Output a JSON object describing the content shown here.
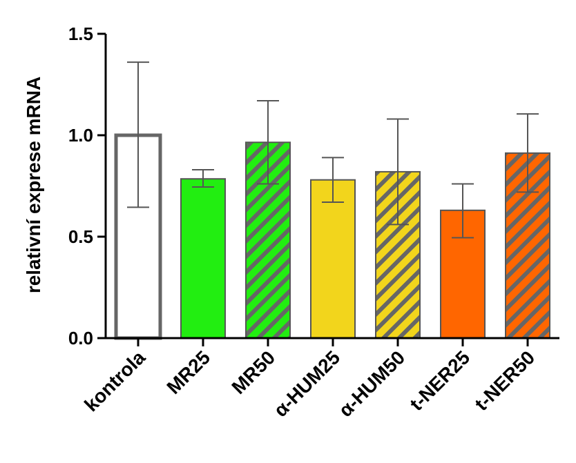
{
  "chart_data": {
    "type": "bar",
    "title": "",
    "xlabel": "",
    "ylabel": "relativní exprese mRNA",
    "ylim": [
      0,
      1.5
    ],
    "yticks": [
      "0.0",
      "0.5",
      "1.0",
      "1.5"
    ],
    "grid": false,
    "categories": [
      "kontrola",
      "MR25",
      "MR50",
      "α-HUM25",
      "α-HUM50",
      "t-NER25",
      "t-NER50"
    ],
    "values": [
      1.0,
      0.785,
      0.965,
      0.78,
      0.82,
      0.63,
      0.912
    ],
    "error_low": [
      0.645,
      0.745,
      0.76,
      0.67,
      0.56,
      0.495,
      0.72
    ],
    "error_high": [
      1.36,
      0.83,
      1.17,
      0.89,
      1.08,
      0.76,
      1.105
    ],
    "fill_colors": [
      "#ffffff",
      "#22ee11",
      "#22ee11",
      "#f2d51c",
      "#f2d51c",
      "#ff6600",
      "#ff6600"
    ],
    "hatched": [
      false,
      false,
      true,
      false,
      true,
      false,
      true
    ],
    "outline_colors": [
      "#666666",
      "#555555",
      "#555555",
      "#555555",
      "#555555",
      "#555555",
      "#555555"
    ],
    "hatch_color": "#666666",
    "error_bar_color": "#555555",
    "axis_color": "#000000"
  }
}
